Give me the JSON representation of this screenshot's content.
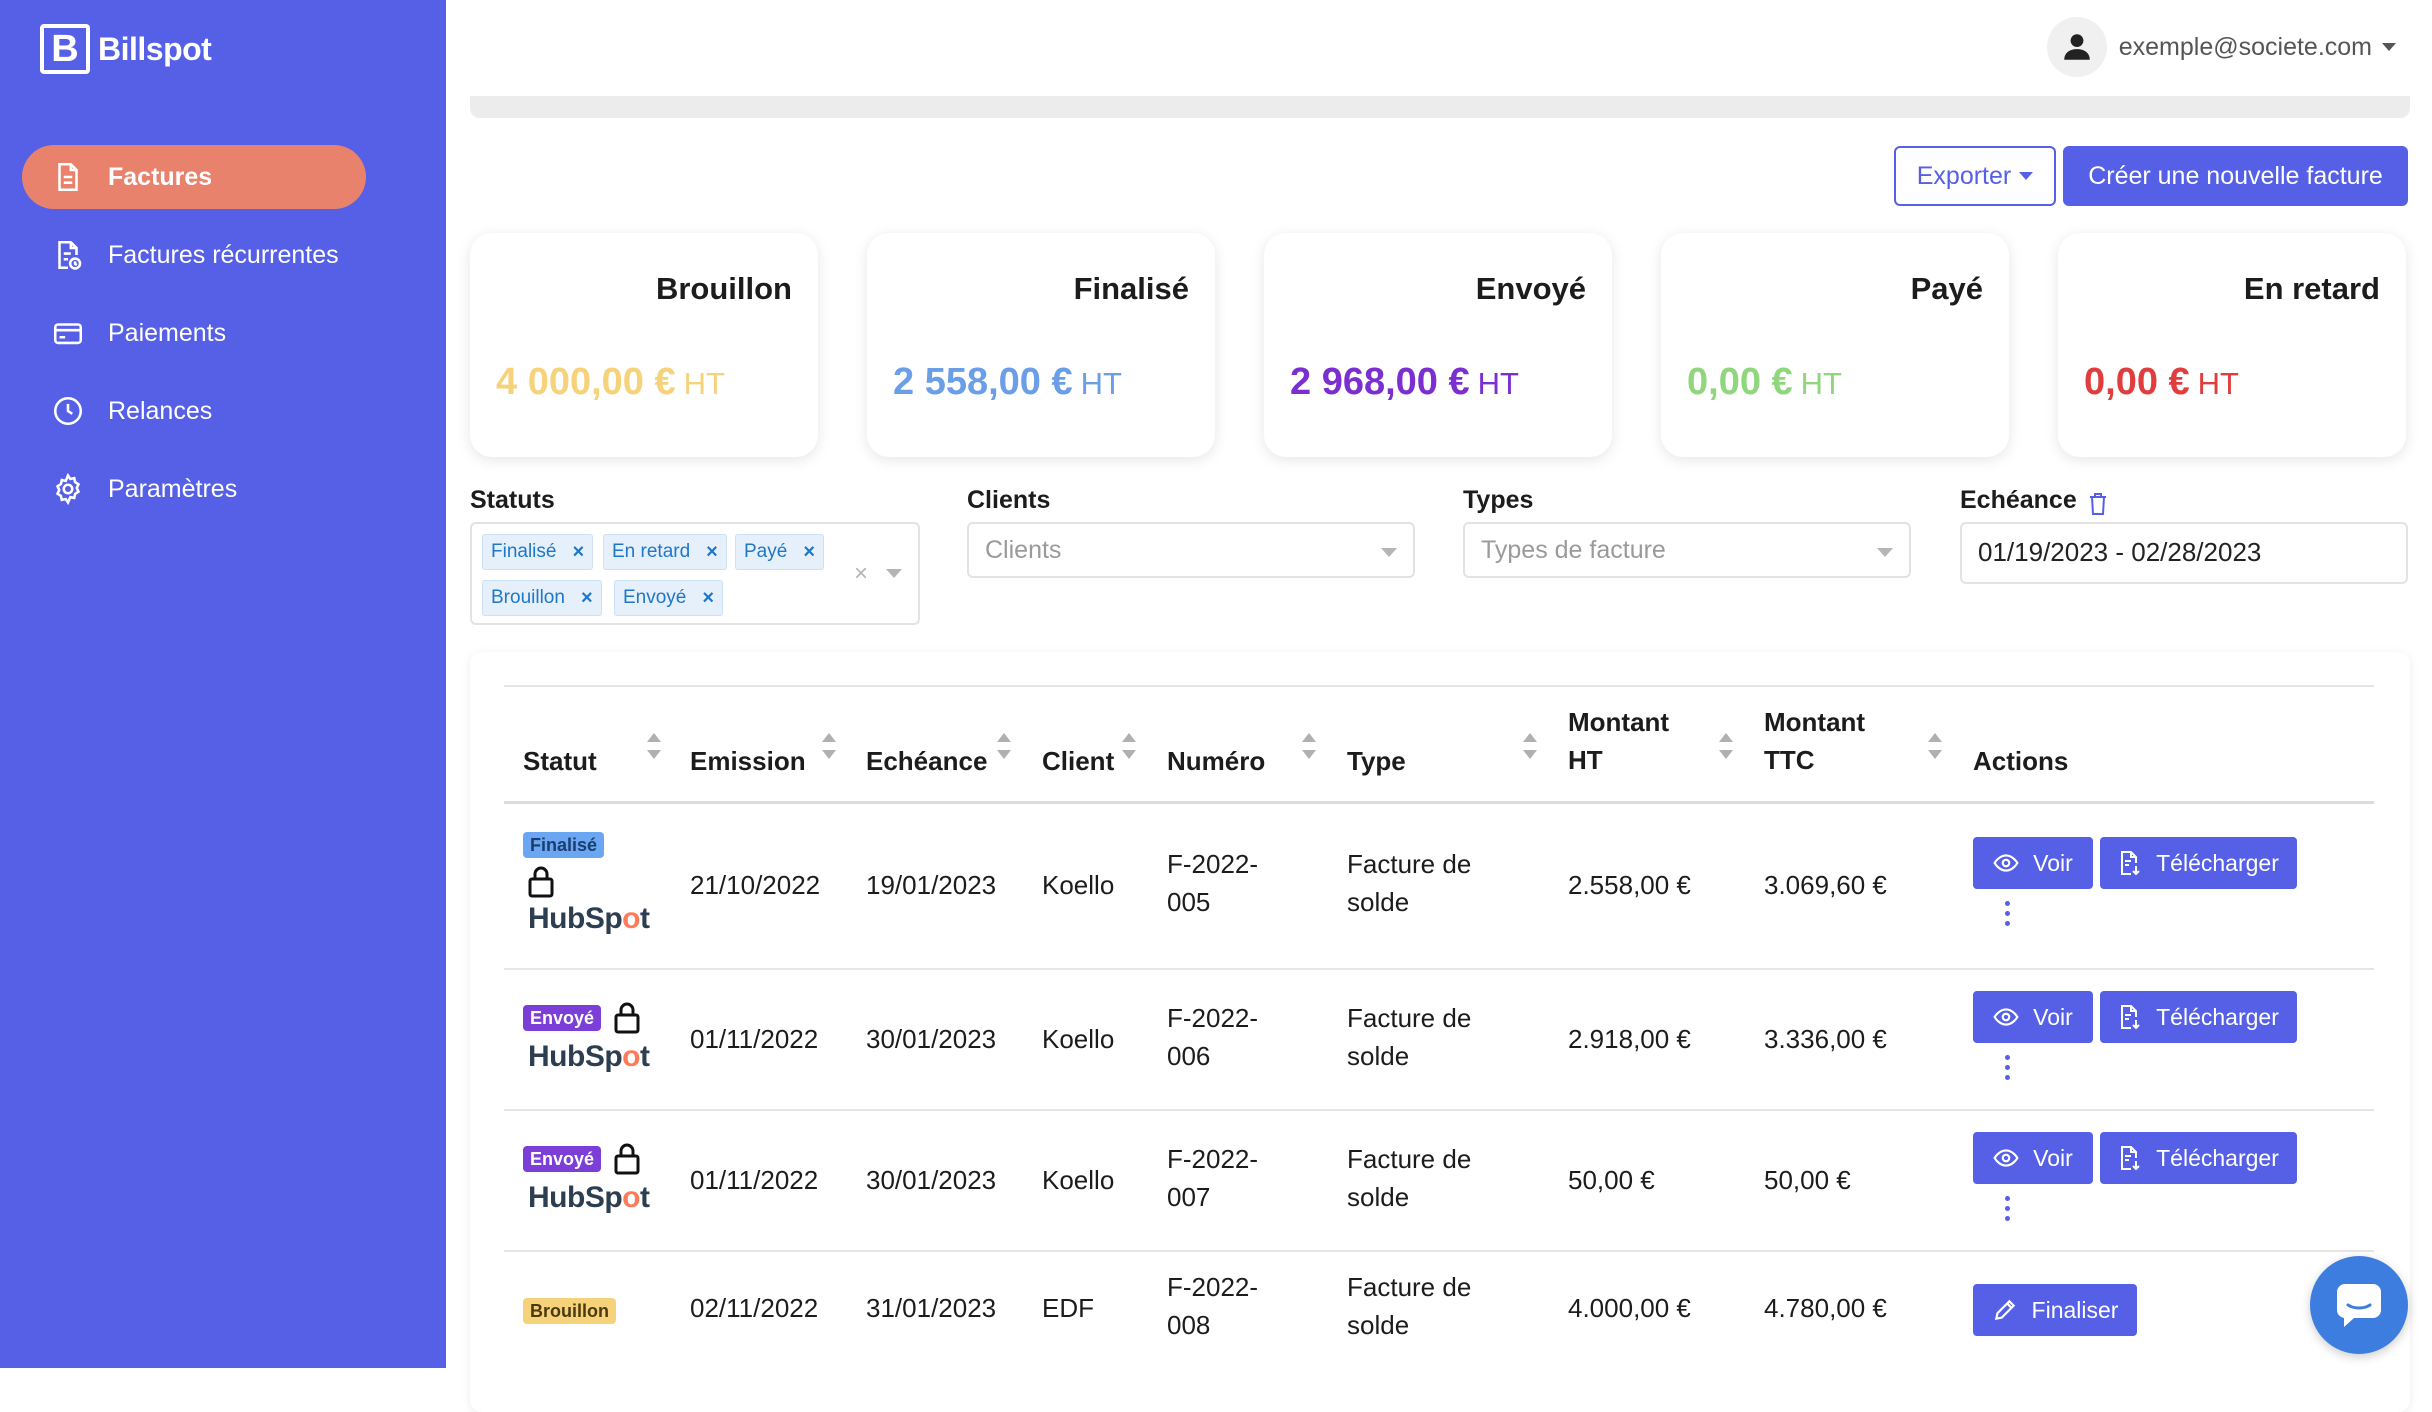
{
  "app": {
    "name": "Billspot",
    "logo_letter": "B"
  },
  "sidebar": {
    "items": [
      {
        "label": "Factures",
        "icon": "document-icon",
        "active": true
      },
      {
        "label": "Factures récurrentes",
        "icon": "recurring-document-icon",
        "active": false
      },
      {
        "label": "Paiements",
        "icon": "credit-card-icon",
        "active": false
      },
      {
        "label": "Relances",
        "icon": "clock-icon",
        "active": false
      },
      {
        "label": "Paramètres",
        "icon": "gear-icon",
        "active": false
      }
    ]
  },
  "user": {
    "email": "exemple@societe.com",
    "icon": "user-icon"
  },
  "actions": {
    "export": "Exporter",
    "create": "Créer une nouvelle facture"
  },
  "cards": [
    {
      "title": "Brouillon",
      "amount": "4 000,00 €",
      "unit": "HT",
      "color": "#f6d27a"
    },
    {
      "title": "Finalisé",
      "amount": "2 558,00 €",
      "unit": "HT",
      "color": "#6a9ee6"
    },
    {
      "title": "Envoyé",
      "amount": "2 968,00 €",
      "unit": "HT",
      "color": "#7b2fd1"
    },
    {
      "title": "Payé",
      "amount": "0,00 €",
      "unit": "HT",
      "color": "#8fd67c"
    },
    {
      "title": "En retard",
      "amount": "0,00 €",
      "unit": "HT",
      "color": "#e03e3e"
    }
  ],
  "filters": {
    "statuts": {
      "label": "Statuts",
      "chips": [
        "Finalisé",
        "En retard",
        "Payé",
        "Brouillon",
        "Envoyé"
      ],
      "remove_symbol": "×",
      "clear_symbol": "×"
    },
    "clients": {
      "label": "Clients",
      "placeholder": "Clients"
    },
    "types": {
      "label": "Types",
      "placeholder": "Types de facture"
    },
    "echeance": {
      "label": "Echéance",
      "value": "01/19/2023 - 02/28/2023"
    }
  },
  "table": {
    "headers": {
      "statut": "Statut",
      "emission": "Emission",
      "echeance": "Echéance",
      "client": "Client",
      "numero": "Numéro",
      "type": "Type",
      "montant_ht_1": "Montant",
      "montant_ht_2": "HT",
      "montant_ttc_1": "Montant",
      "montant_ttc_2": "TTC",
      "actions": "Actions"
    },
    "rows": [
      {
        "status": "Finalisé",
        "locked": true,
        "hubspot": true,
        "emission": "21/10/2022",
        "echeance": "19/01/2023",
        "client": "Koello",
        "numero_1": "F-2022-",
        "numero_2": "005",
        "type_1": "Facture de",
        "type_2": "solde",
        "ht": "2.558,00 €",
        "ttc": "3.069,60 €",
        "actions": [
          "Voir",
          "Télécharger"
        ]
      },
      {
        "status": "Envoyé",
        "locked": true,
        "hubspot": true,
        "emission": "01/11/2022",
        "echeance": "30/01/2023",
        "client": "Koello",
        "numero_1": "F-2022-",
        "numero_2": "006",
        "type_1": "Facture de",
        "type_2": "solde",
        "ht": "2.918,00 €",
        "ttc": "3.336,00 €",
        "actions": [
          "Voir",
          "Télécharger"
        ]
      },
      {
        "status": "Envoyé",
        "locked": true,
        "hubspot": true,
        "emission": "01/11/2022",
        "echeance": "30/01/2023",
        "client": "Koello",
        "numero_1": "F-2022-",
        "numero_2": "007",
        "type_1": "Facture de",
        "type_2": "solde",
        "ht": "50,00 €",
        "ttc": "50,00 €",
        "actions": [
          "Voir",
          "Télécharger"
        ]
      },
      {
        "status": "Brouillon",
        "locked": false,
        "hubspot": false,
        "emission": "02/11/2022",
        "echeance": "31/01/2023",
        "client": "EDF",
        "numero_1": "F-2022-",
        "numero_2": "008",
        "type_1": "Facture de",
        "type_2": "solde",
        "ht": "4.000,00 €",
        "ttc": "4.780,00 €",
        "actions": [
          "Finaliser"
        ]
      }
    ],
    "hubspot_logo": {
      "a": "HubSp",
      "b": "o",
      "c": "t"
    }
  },
  "chat": {
    "icon": "chat-bubble-icon"
  }
}
